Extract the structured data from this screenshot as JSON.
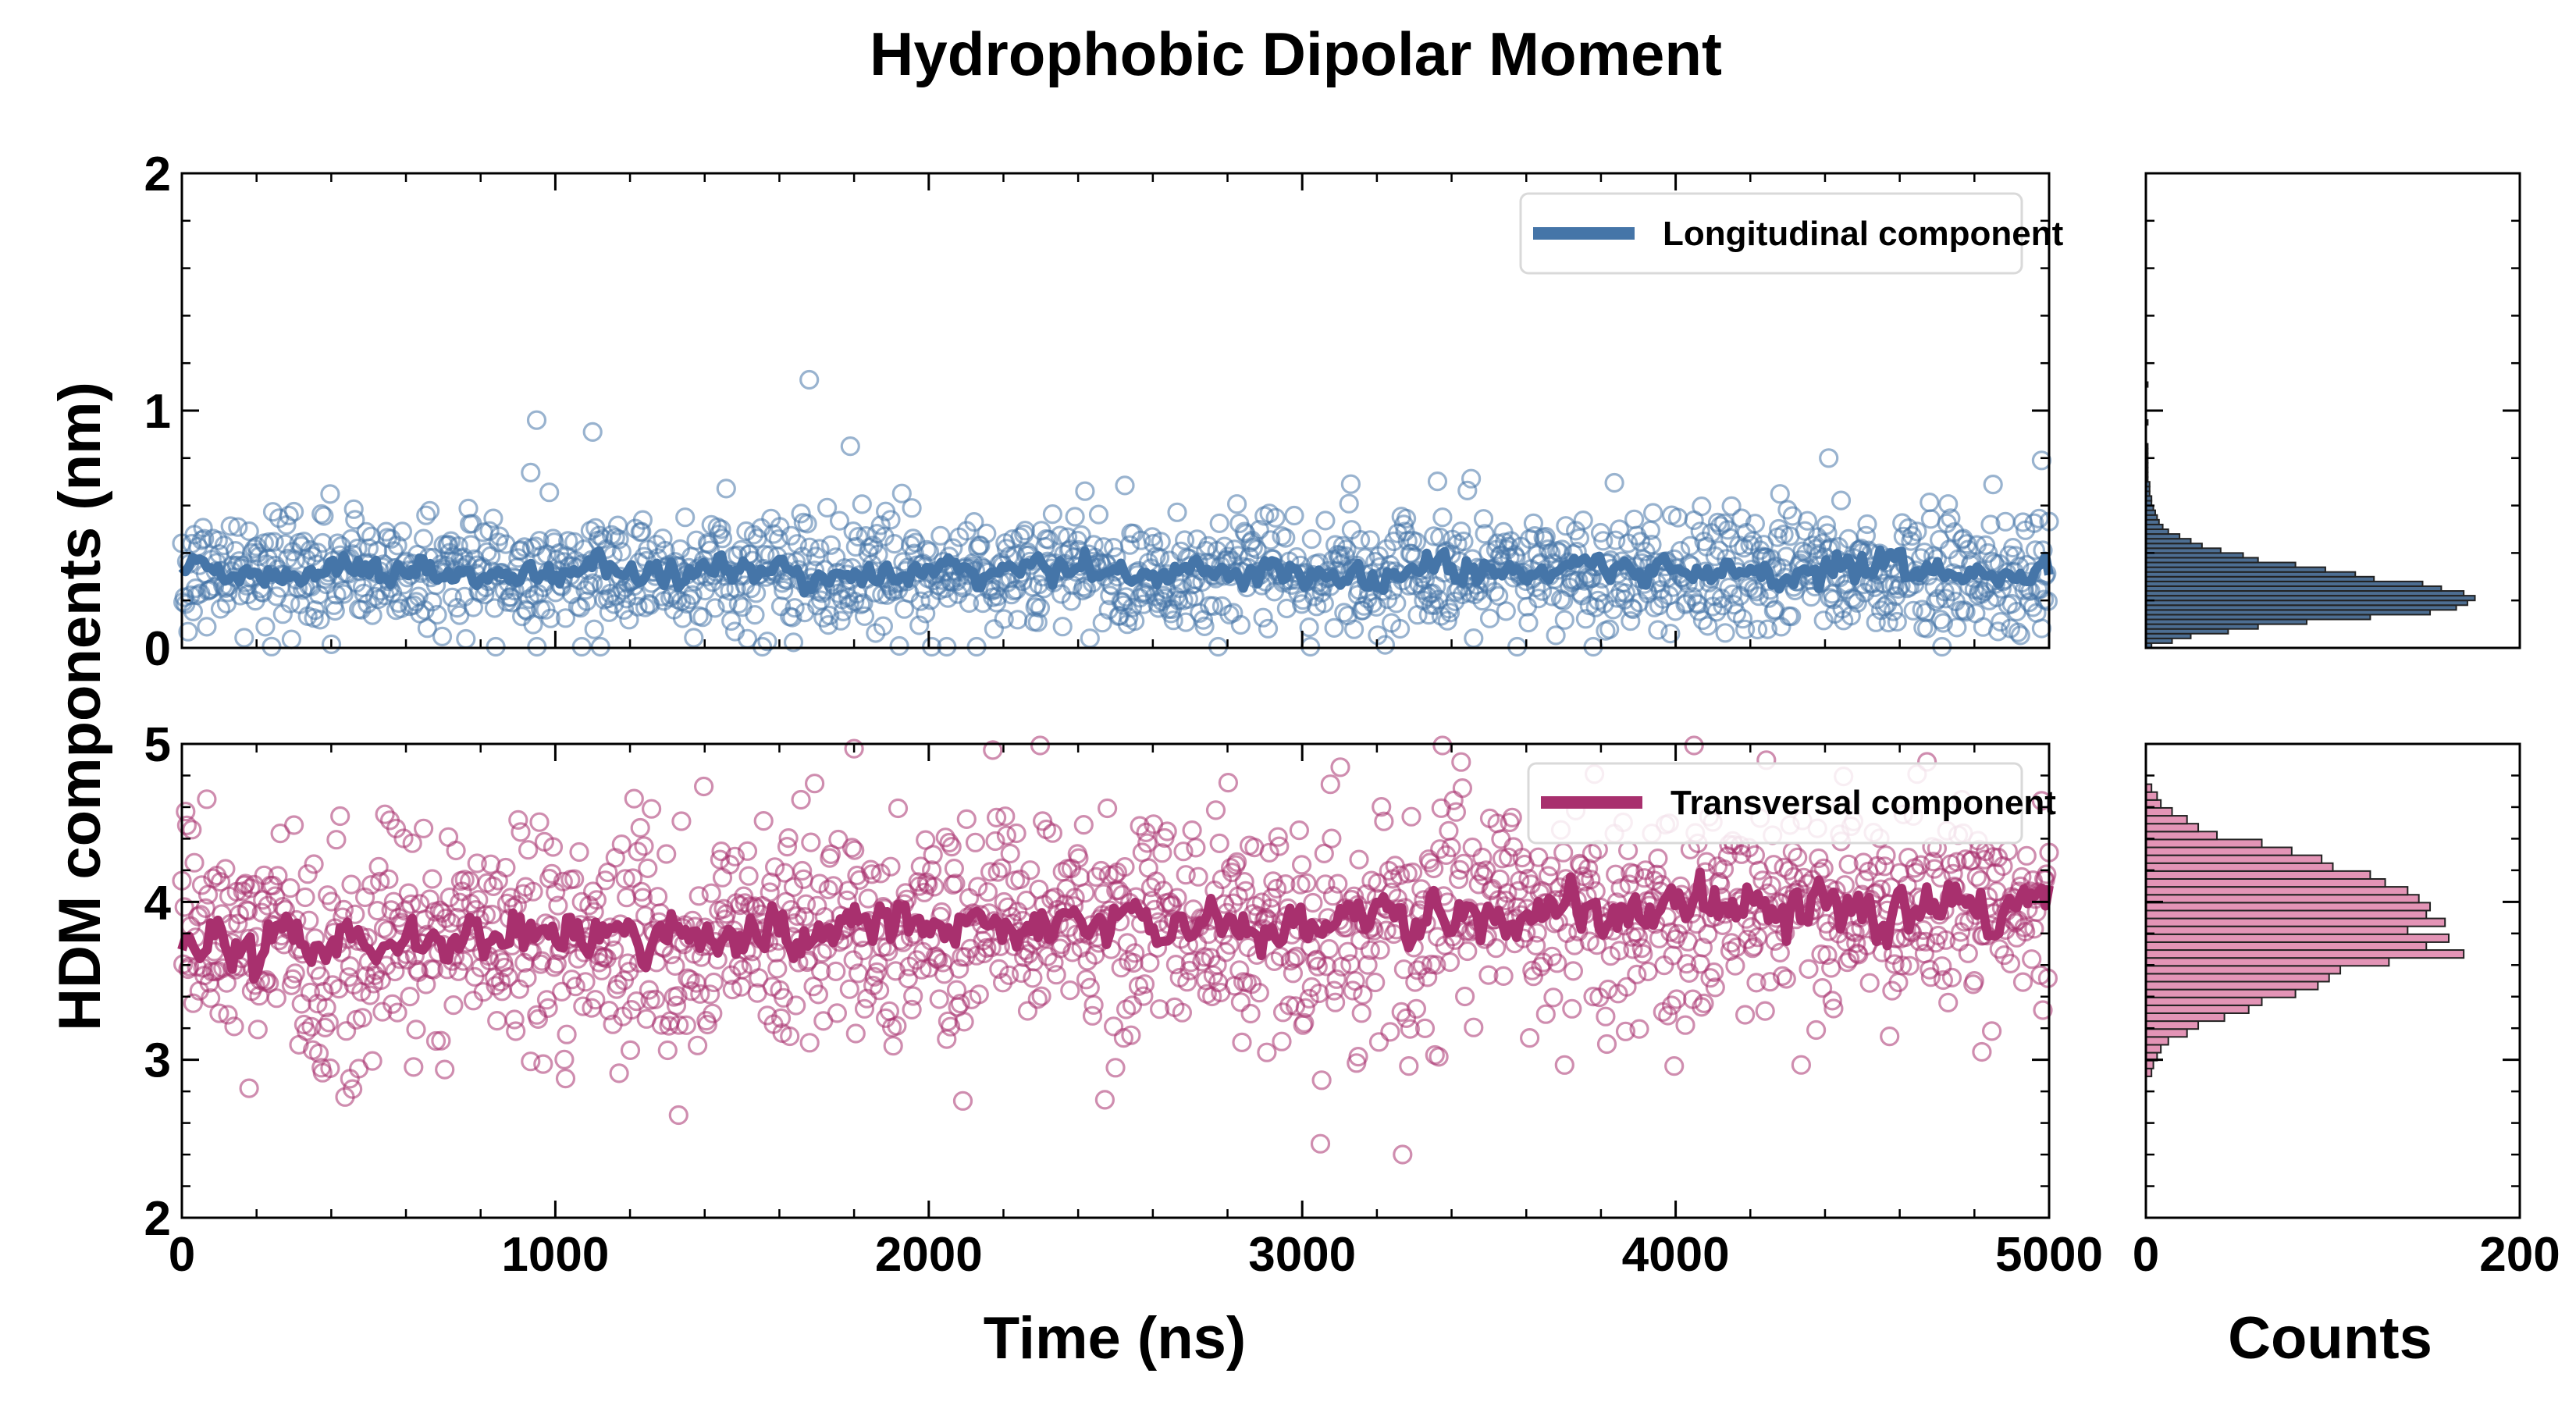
{
  "chart_data": {
    "title": "Hydrophobic Dipolar Moment",
    "shared_ylabel": "HDM components (nm)",
    "colors": {
      "longitudinal": "#4575a8",
      "transversal": "#a8306e",
      "hist_long_fill": "#4d6e92",
      "hist_trans_fill": "#e394b6"
    },
    "time_axis": {
      "xlabel": "Time (ns)",
      "xlim": [
        0,
        5000
      ],
      "ticks": [
        "0",
        "1000",
        "2000",
        "3000",
        "4000",
        "5000"
      ]
    },
    "count_axis": {
      "xlabel": "Counts",
      "xlim": [
        0,
        200
      ],
      "ticks": [
        "0",
        "200"
      ]
    },
    "panels": [
      {
        "name": "longitudinal",
        "type": "scatter+line",
        "legend": "Longitudinal component",
        "legend_loc": "top-right",
        "ylim": [
          0,
          2
        ],
        "yticks": [
          "0",
          "1",
          "2"
        ],
        "points": 1500,
        "scatter_mean": 0.32,
        "scatter_std": 0.13,
        "running_average_mean": 0.32,
        "outliers": [
          [
            950,
            0.96
          ],
          [
            1100,
            0.91
          ],
          [
            1680,
            1.13
          ],
          [
            1790,
            0.85
          ],
          [
            3130,
            0.69
          ],
          [
            4410,
            0.8
          ],
          [
            4980,
            0.79
          ]
        ],
        "histogram": {
          "bin_centers": [
            0.01,
            0.03,
            0.05,
            0.07,
            0.09,
            0.11,
            0.13,
            0.15,
            0.17,
            0.19,
            0.21,
            0.23,
            0.25,
            0.27,
            0.29,
            0.31,
            0.33,
            0.35,
            0.37,
            0.39,
            0.41,
            0.43,
            0.45,
            0.47,
            0.49,
            0.51,
            0.53,
            0.55,
            0.57,
            0.59,
            0.61,
            0.63,
            0.65,
            0.67,
            0.69,
            0.71,
            0.73,
            0.75,
            0.77,
            0.79,
            0.81,
            0.83,
            0.85,
            0.87,
            0.89,
            0.91,
            0.93,
            0.95,
            0.97,
            0.99,
            1.01,
            1.03,
            1.05,
            1.07,
            1.09,
            1.11
          ],
          "counts": [
            3,
            14,
            24,
            44,
            60,
            86,
            120,
            152,
            166,
            172,
            176,
            170,
            158,
            148,
            122,
            112,
            96,
            80,
            60,
            52,
            40,
            30,
            24,
            18,
            12,
            9,
            7,
            6,
            5,
            4,
            3,
            3,
            2,
            2,
            2,
            1,
            1,
            1,
            1,
            1,
            1,
            1,
            1,
            0,
            0,
            0,
            0,
            1,
            0,
            0,
            0,
            0,
            0,
            0,
            0,
            1
          ]
        }
      },
      {
        "name": "transversal",
        "type": "scatter+line",
        "legend": "Transversal component",
        "legend_loc": "top-right",
        "ylim": [
          2,
          5
        ],
        "yticks": [
          "2",
          "3",
          "4",
          "5"
        ],
        "points": 1500,
        "scatter_mean": 3.85,
        "scatter_std": 0.36,
        "running_average_start": 3.72,
        "running_average_end": 3.98,
        "outliers": [
          [
            180,
            2.82
          ],
          [
            450,
            2.88
          ],
          [
            1330,
            2.65
          ],
          [
            2500,
            2.95
          ],
          [
            3150,
            3.02
          ],
          [
            4820,
            3.05
          ],
          [
            1800,
            4.97
          ]
        ],
        "histogram": {
          "bin_centers": [
            2.92,
            2.97,
            3.02,
            3.07,
            3.12,
            3.17,
            3.22,
            3.27,
            3.32,
            3.37,
            3.42,
            3.47,
            3.52,
            3.57,
            3.62,
            3.67,
            3.72,
            3.77,
            3.82,
            3.87,
            3.92,
            3.97,
            4.02,
            4.07,
            4.12,
            4.17,
            4.22,
            4.27,
            4.32,
            4.37,
            4.42,
            4.47,
            4.52,
            4.57,
            4.62,
            4.67,
            4.72
          ],
          "counts": [
            3,
            4,
            6,
            8,
            12,
            22,
            28,
            42,
            55,
            62,
            80,
            92,
            98,
            104,
            130,
            170,
            150,
            162,
            140,
            160,
            150,
            152,
            146,
            140,
            128,
            120,
            100,
            94,
            78,
            62,
            38,
            28,
            22,
            14,
            8,
            6,
            3
          ]
        }
      }
    ]
  }
}
